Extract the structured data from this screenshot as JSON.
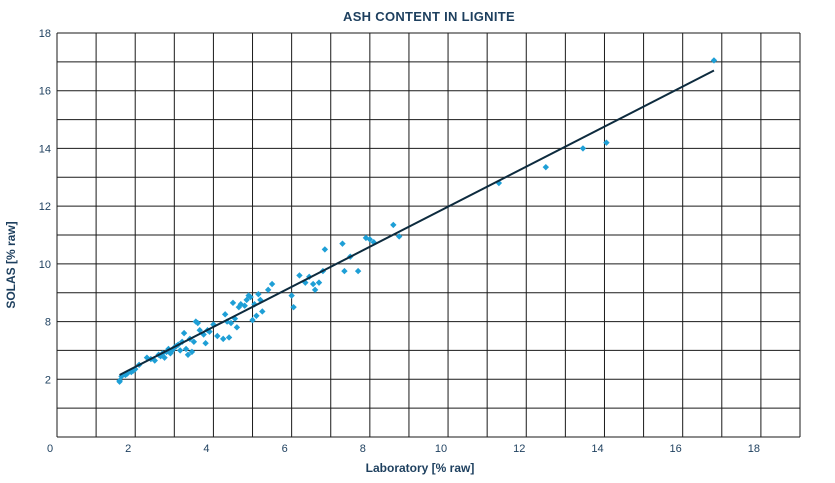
{
  "chart_data": {
    "type": "scatter",
    "title": "ASH CONTENT IN LIGNITE",
    "xlabel": "Laboratory [% raw]",
    "ylabel": "SOLAS [% raw]",
    "xlim": [
      0,
      19
    ],
    "ylim_axis_labels": [
      "2",
      "8",
      "10",
      "12",
      "14",
      "16",
      "18"
    ],
    "x_ticks": [
      "0",
      "2",
      "4",
      "6",
      "8",
      "10",
      "12",
      "14",
      "16",
      "18"
    ],
    "grid": true,
    "colors": {
      "points": "#1e9fd6",
      "line": "#0d2b3e",
      "text": "#1d3f5e"
    },
    "regression_line": {
      "x": [
        1.6,
        16.8
      ],
      "y": [
        6.15,
        16.7
      ]
    },
    "series": [
      {
        "marker": "diamond",
        "points": [
          [
            1.6,
            5.75
          ],
          [
            1.6,
            5.85
          ],
          [
            1.65,
            6.1
          ],
          [
            1.75,
            6.15
          ],
          [
            1.8,
            6.2
          ],
          [
            1.9,
            6.25
          ],
          [
            1.95,
            6.3
          ],
          [
            2.0,
            6.35
          ],
          [
            2.1,
            6.5
          ],
          [
            2.3,
            6.75
          ],
          [
            2.4,
            6.7
          ],
          [
            2.5,
            6.65
          ],
          [
            2.6,
            6.85
          ],
          [
            2.65,
            6.8
          ],
          [
            2.7,
            6.9
          ],
          [
            2.75,
            6.75
          ],
          [
            2.8,
            6.95
          ],
          [
            2.85,
            7.05
          ],
          [
            2.9,
            6.9
          ],
          [
            2.95,
            7.0
          ],
          [
            3.0,
            7.1
          ],
          [
            3.05,
            7.15
          ],
          [
            3.1,
            7.2
          ],
          [
            3.15,
            7.0
          ],
          [
            3.2,
            7.3
          ],
          [
            3.25,
            7.6
          ],
          [
            3.3,
            7.05
          ],
          [
            3.35,
            6.85
          ],
          [
            3.4,
            7.4
          ],
          [
            3.45,
            6.95
          ],
          [
            3.5,
            7.3
          ],
          [
            3.55,
            8.0
          ],
          [
            3.6,
            7.95
          ],
          [
            3.65,
            7.7
          ],
          [
            3.75,
            7.55
          ],
          [
            3.8,
            7.25
          ],
          [
            3.85,
            7.7
          ],
          [
            3.9,
            7.65
          ],
          [
            4.0,
            7.9
          ],
          [
            4.1,
            7.5
          ],
          [
            4.25,
            7.4
          ],
          [
            4.3,
            8.25
          ],
          [
            4.35,
            8.0
          ],
          [
            4.4,
            7.45
          ],
          [
            4.45,
            7.95
          ],
          [
            4.5,
            8.65
          ],
          [
            4.55,
            8.1
          ],
          [
            4.6,
            7.8
          ],
          [
            4.65,
            8.5
          ],
          [
            4.7,
            8.6
          ],
          [
            4.8,
            8.55
          ],
          [
            4.85,
            8.75
          ],
          [
            4.9,
            8.9
          ],
          [
            4.95,
            8.85
          ],
          [
            5.0,
            8.05
          ],
          [
            5.05,
            8.6
          ],
          [
            5.1,
            8.2
          ],
          [
            5.15,
            8.95
          ],
          [
            5.2,
            8.75
          ],
          [
            5.25,
            8.35
          ],
          [
            5.4,
            9.1
          ],
          [
            5.5,
            9.3
          ],
          [
            6.0,
            8.9
          ],
          [
            6.05,
            8.5
          ],
          [
            6.2,
            9.6
          ],
          [
            6.35,
            9.35
          ],
          [
            6.45,
            9.55
          ],
          [
            6.55,
            9.3
          ],
          [
            6.6,
            9.1
          ],
          [
            6.7,
            9.35
          ],
          [
            6.8,
            9.75
          ],
          [
            6.85,
            10.5
          ],
          [
            7.3,
            10.7
          ],
          [
            7.35,
            9.75
          ],
          [
            7.5,
            10.25
          ],
          [
            7.7,
            9.75
          ],
          [
            7.9,
            10.9
          ],
          [
            8.0,
            10.85
          ],
          [
            8.1,
            10.75
          ],
          [
            8.6,
            11.35
          ],
          [
            8.75,
            10.95
          ],
          [
            11.3,
            12.8
          ],
          [
            12.5,
            13.35
          ],
          [
            13.45,
            14.0
          ],
          [
            14.05,
            14.2
          ],
          [
            16.8,
            17.05
          ]
        ]
      }
    ]
  }
}
